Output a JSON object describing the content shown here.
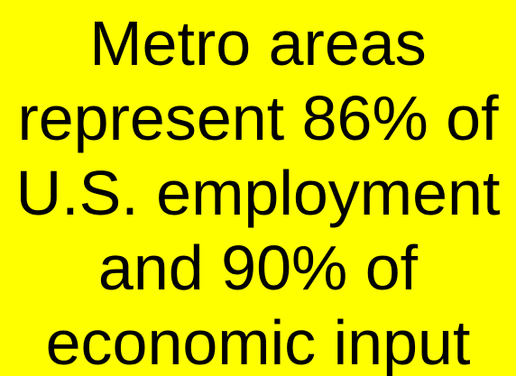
{
  "slide": {
    "lines": [
      "Metro areas",
      "represent 86% of",
      "U.S. employment",
      "and 90% of",
      "economic input"
    ]
  }
}
